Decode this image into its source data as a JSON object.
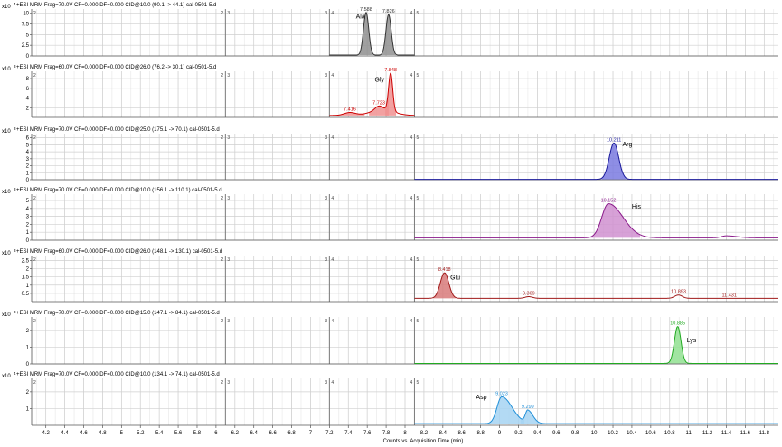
{
  "chart_data": {
    "type": "line",
    "xlabel": "Counts vs. Acquisition Time (min)",
    "x_ticks": [
      "4.2",
      "4.4",
      "4.6",
      "4.8",
      "5",
      "5.2",
      "5.4",
      "5.6",
      "5.8",
      "6",
      "6.2",
      "6.4",
      "6.6",
      "6.8",
      "7",
      "7.2",
      "7.4",
      "7.6",
      "7.8",
      "8",
      "8.2",
      "8.4",
      "8.6",
      "8.8",
      "9",
      "9.2",
      "9.4",
      "9.6",
      "9.8",
      "10",
      "10.2",
      "10.4",
      "10.6",
      "10.8",
      "11",
      "11.2",
      "11.4",
      "11.6",
      "11.8"
    ],
    "xlim": [
      4.05,
      11.95
    ],
    "segment_boundaries": [
      6.1,
      7.2,
      8.1
    ],
    "segment_labels": [
      "2",
      "3",
      "4",
      "5"
    ],
    "panels": [
      {
        "header": "+ESI MRM Frag=70.0V CF=0.000 DF=0.000 CID@10.0 (90.1 -> 44.1) cal-0501-5.d",
        "exponent": "4",
        "y_ticks": [
          "0",
          "2.5",
          "5",
          "7.5",
          "10"
        ],
        "ylim": [
          0,
          11
        ],
        "color": "#333333",
        "fill": "#8f8f8f",
        "analyte": "Ala",
        "analyte_x": 7.48,
        "analyte_y": 8.8,
        "baseline": 0.2,
        "x_range": [
          7.2,
          8.1
        ],
        "peaks": [
          {
            "rt": 7.588,
            "label": "7.588",
            "height": 10.0,
            "width": 0.028
          },
          {
            "rt": 7.826,
            "label": "7.826",
            "height": 9.5,
            "width": 0.028
          }
        ]
      },
      {
        "header": "+ESI MRM Frag=60.0V CF=0.000 DF=0.000 CID@26.0 (76.2 -> 30.1) cal-0501-5.d",
        "exponent": "3",
        "y_ticks": [
          "2",
          "4",
          "6",
          "8"
        ],
        "ylim": [
          0,
          9.5
        ],
        "color": "#cc0000",
        "fill": "#f09090",
        "analyte": "Gly",
        "analyte_x": 7.68,
        "analyte_y": 7.4,
        "baseline": 0.4,
        "hump": {
          "center": 7.76,
          "height": 1.2,
          "width": 0.12
        },
        "x_range": [
          7.2,
          8.1
        ],
        "peaks": [
          {
            "rt": 7.416,
            "label": "7.416",
            "height": 0.6,
            "width": 0.06
          },
          {
            "rt": 7.723,
            "label": "7.723",
            "height": 0.8,
            "width": 0.04
          },
          {
            "rt": 7.848,
            "label": "7.848",
            "height": 7.8,
            "width": 0.022
          }
        ]
      },
      {
        "header": "+ESI MRM Frag=70.0V CF=0.000 DF=0.000 CID@25.0 (175.1 -> 70.1) cal-0501-5.d",
        "exponent": "3",
        "y_ticks": [
          "0",
          "1",
          "2",
          "3",
          "4",
          "5",
          "6"
        ],
        "ylim": [
          0,
          6.6
        ],
        "color": "#1a1a9a",
        "fill": "#7a7ae0",
        "analyte": "Arg",
        "analyte_x": 10.3,
        "analyte_y": 4.8,
        "baseline": 0.05,
        "x_range": [
          8.1,
          11.95
        ],
        "peaks": [
          {
            "rt": 10.211,
            "label": "10.211",
            "height": 5.2,
            "width": 0.05
          }
        ]
      },
      {
        "header": "+ESI MRM Frag=70.0V CF=0.000 DF=0.000 CID@10.0 (156.1 -> 110.1) cal-0501-5.d",
        "exponent": "3",
        "y_ticks": [
          "0",
          "1",
          "2",
          "3",
          "4",
          "5"
        ],
        "ylim": [
          0,
          5.8
        ],
        "color": "#8a1a8a",
        "fill": "#d090d0",
        "analyte": "His",
        "analyte_x": 10.4,
        "analyte_y": 4.0,
        "baseline": 0.3,
        "tailing": true,
        "x_range": [
          8.1,
          11.95
        ],
        "peaks": [
          {
            "rt": 10.152,
            "label": "10.152",
            "height": 4.3,
            "width": 0.07
          },
          {
            "rt": 11.4,
            "label": "",
            "height": 0.25,
            "width": 0.05
          }
        ]
      },
      {
        "header": "+ESI MRM Frag=60.0V CF=0.000 DF=0.000 CID@26.0 (148.1 -> 130.1) cal-0501-5.d",
        "exponent": "3",
        "y_ticks": [
          "0.5",
          "1",
          "1.5",
          "2",
          "2.5"
        ],
        "ylim": [
          0,
          2.8
        ],
        "color": "#a01a1a",
        "fill": "#d87a7a",
        "analyte": "Glu",
        "analyte_x": 8.48,
        "analyte_y": 1.35,
        "baseline": 0.2,
        "x_range": [
          8.1,
          11.95
        ],
        "peaks": [
          {
            "rt": 8.418,
            "label": "8.418",
            "height": 1.55,
            "width": 0.045
          },
          {
            "rt": 9.309,
            "label": "9.309",
            "height": 0.1,
            "width": 0.04
          },
          {
            "rt": 10.893,
            "label": "10.893",
            "height": 0.2,
            "width": 0.04
          },
          {
            "rt": 11.431,
            "label": "11.431",
            "height": 0.0,
            "width": 0.04
          }
        ]
      },
      {
        "header": "+ESI MRM Frag=70.0V CF=0.000 DF=0.000 CID@15.0 (147.1 -> 84.1) cal-0501-5.d",
        "exponent": "3",
        "y_ticks": [
          "0",
          "1",
          "2"
        ],
        "ylim": [
          0,
          2.8
        ],
        "color": "#22aa22",
        "fill": "#90e090",
        "analyte": "Lys",
        "analyte_x": 10.98,
        "analyte_y": 1.3,
        "baseline": 0.03,
        "x_range": [
          8.1,
          11.95
        ],
        "peaks": [
          {
            "rt": 10.885,
            "label": "10.885",
            "height": 2.2,
            "width": 0.035
          }
        ]
      },
      {
        "header": "+ESI MRM Frag=70.0V CF=0.000 DF=0.000 CID@10.0 (134.1 -> 74.1) cal-0501-5.d",
        "exponent": "4",
        "y_ticks": [
          "1",
          "2"
        ],
        "ylim": [
          0,
          2.8
        ],
        "color": "#1f8fd8",
        "fill": "#a6d4f2",
        "analyte": "Asp",
        "analyte_x": 8.75,
        "analyte_y": 1.55,
        "baseline": 0.1,
        "tailing": true,
        "x_range": [
          8.1,
          11.95
        ],
        "peaks": [
          {
            "rt": 9.023,
            "label": "9.023",
            "height": 1.6,
            "width": 0.05
          },
          {
            "rt": 9.299,
            "label": "9.299",
            "height": 0.75,
            "width": 0.025
          }
        ]
      }
    ]
  }
}
